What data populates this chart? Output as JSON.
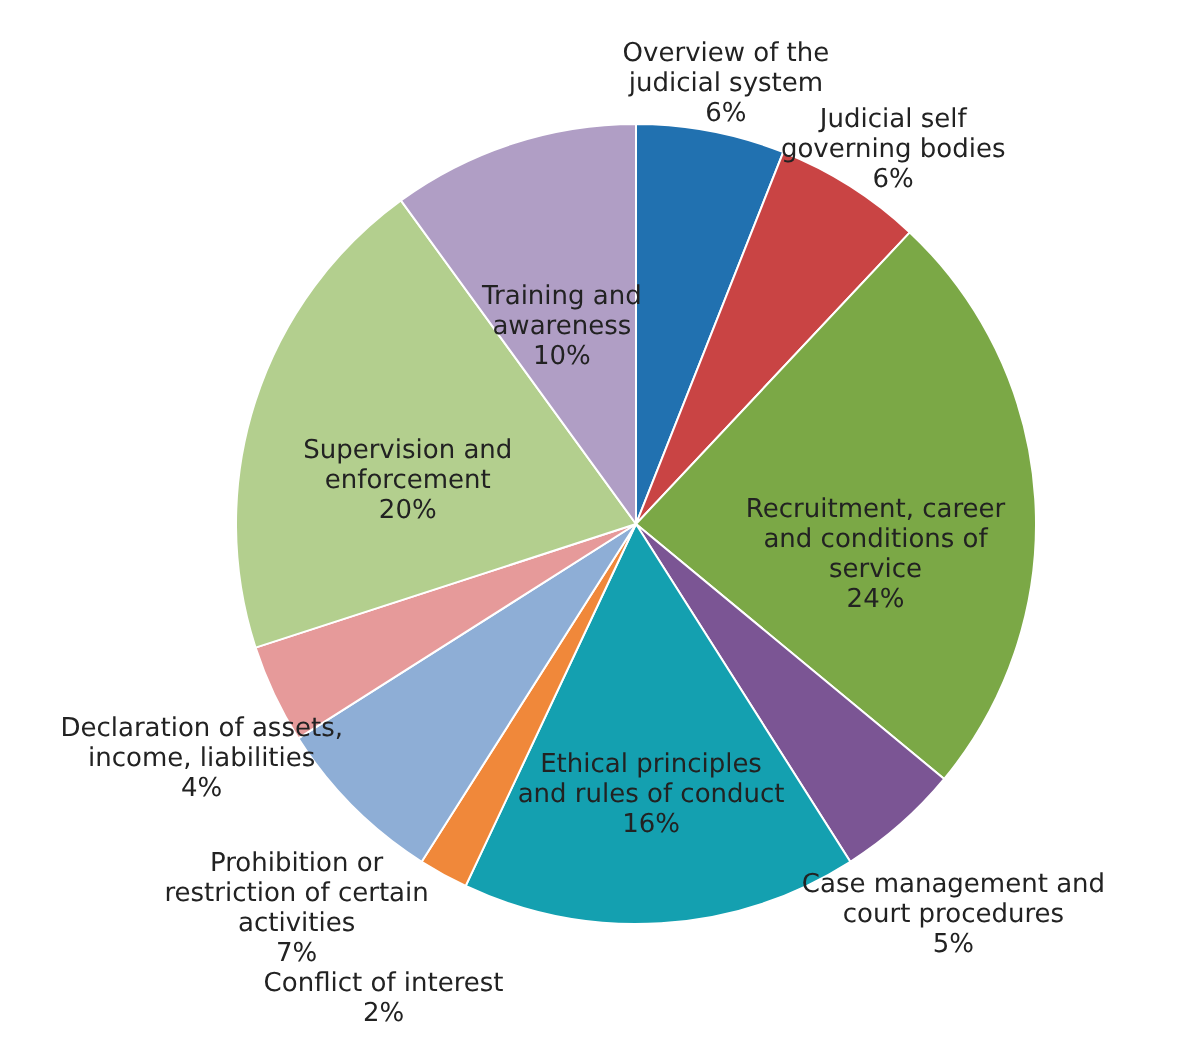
{
  "chart_data": {
    "type": "pie",
    "categories": [
      "Overview of the judicial system",
      "Judicial self governing bodies",
      "Recruitment, career and conditions of service",
      "Case management and court procedures",
      "Ethical principles and rules of conduct",
      "Conflict of interest",
      "Prohibition or restriction of certain activities",
      "Declaration of assets, income, liabilities",
      "Supervision and enforcement",
      "Training and awareness"
    ],
    "values": [
      6,
      6,
      24,
      5,
      16,
      2,
      7,
      4,
      20,
      10
    ],
    "value_labels": [
      "6%",
      "6%",
      "24%",
      "5%",
      "16%",
      "2%",
      "7%",
      "4%",
      "20%",
      "10%"
    ],
    "colors": [
      "#2171b0",
      "#c94444",
      "#7ba846",
      "#7b5594",
      "#14a0b0",
      "#f0883a",
      "#8eaed6",
      "#e69a9a",
      "#b3cf8e",
      "#b09ec5"
    ]
  }
}
